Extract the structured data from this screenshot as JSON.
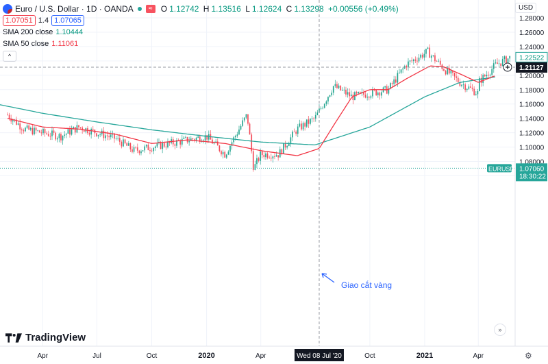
{
  "header": {
    "symbol_title": "Euro / U.S. Dollar · 1D · OANDA",
    "feedback_glyph": "≈",
    "ohlc": {
      "o_label": "O",
      "o_value": "1.12742",
      "h_label": "H",
      "h_value": "1.13516",
      "l_label": "L",
      "l_value": "1.12624",
      "c_label": "C",
      "c_value": "1.13298",
      "change": "+0.00556 (+0.49%)"
    },
    "sell_price": "1.07051",
    "spread": "1.4",
    "buy_price": "1.07065",
    "collapse_glyph": "^"
  },
  "indicators": [
    {
      "label": "SMA 200 close",
      "value": "1.10444",
      "color": "#26a69a"
    },
    {
      "label": "SMA 50 close",
      "value": "1.11061",
      "color": "#f23645"
    }
  ],
  "currency": "USD",
  "brand": "TradingView",
  "annotation": "Giao cắt vàng",
  "crosshair_date_label": "Wed 08 Jul '20",
  "crosshair_price_label": "1.21127",
  "last_price_label": "1.22522",
  "symbol_tag": "EURUSD",
  "symbol_price": "1.07060",
  "countdown": "18:30:22",
  "chart_data": {
    "type": "candlestick",
    "title": "Euro / U.S. Dollar · 1D · OANDA",
    "y_ticks": [
      "1.28000",
      "1.26000",
      "1.24000",
      "1.22000",
      "1.20000",
      "1.18000",
      "1.16000",
      "1.14000",
      "1.12000",
      "1.10000",
      "1.08000",
      "1.06000"
    ],
    "ylim": [
      1.05,
      1.29
    ],
    "x_ticks": [
      "Apr",
      "Jul",
      "Oct",
      "2020",
      "Apr",
      "Oct",
      "2021",
      "Apr"
    ],
    "x_tick_dates": [
      "2019-04",
      "2019-07",
      "2019-10",
      "2020-01",
      "2020-04",
      "2020-10",
      "2021-01",
      "2021-04"
    ],
    "price_path": {
      "dates": [
        "2019-02",
        "2019-03",
        "2019-04",
        "2019-05",
        "2019-06",
        "2019-07",
        "2019-08",
        "2019-09",
        "2019-10",
        "2019-11",
        "2019-12",
        "2020-01",
        "2020-02",
        "2020-03-09",
        "2020-03-20",
        "2020-04",
        "2020-05",
        "2020-06",
        "2020-07",
        "2020-08",
        "2020-09",
        "2020-10",
        "2020-11",
        "2020-12",
        "2021-01-06",
        "2021-02",
        "2021-03",
        "2021-03-31",
        "2021-04",
        "2021-05",
        "2021-05-25"
      ],
      "values": [
        1.145,
        1.125,
        1.12,
        1.115,
        1.128,
        1.12,
        1.112,
        1.095,
        1.1,
        1.105,
        1.11,
        1.115,
        1.09,
        1.145,
        1.07,
        1.09,
        1.09,
        1.125,
        1.14,
        1.185,
        1.17,
        1.175,
        1.18,
        1.215,
        1.233,
        1.21,
        1.19,
        1.175,
        1.19,
        1.215,
        1.225
      ]
    },
    "series": [
      {
        "name": "SMA 200 close",
        "color": "#26a69a",
        "dates": [
          "2019-01",
          "2019-04",
          "2019-07",
          "2019-10",
          "2020-01",
          "2020-04",
          "2020-07",
          "2020-10",
          "2021-01",
          "2021-03",
          "2021-05"
        ],
        "values": [
          1.162,
          1.147,
          1.135,
          1.124,
          1.115,
          1.107,
          1.103,
          1.128,
          1.17,
          1.19,
          1.198
        ]
      },
      {
        "name": "SMA 50 close",
        "color": "#f23645",
        "dates": [
          "2019-02",
          "2019-04",
          "2019-06",
          "2019-08",
          "2019-10",
          "2019-12",
          "2020-02",
          "2020-04",
          "2020-06",
          "2020-07-08",
          "2020-08",
          "2020-09",
          "2020-10",
          "2020-11",
          "2020-12",
          "2021-01-10",
          "2021-02",
          "2021-03",
          "2021-04",
          "2021-05"
        ],
        "values": [
          1.14,
          1.128,
          1.125,
          1.118,
          1.105,
          1.11,
          1.105,
          1.095,
          1.088,
          1.098,
          1.13,
          1.17,
          1.18,
          1.18,
          1.195,
          1.213,
          1.212,
          1.202,
          1.19,
          1.2
        ]
      }
    ]
  }
}
